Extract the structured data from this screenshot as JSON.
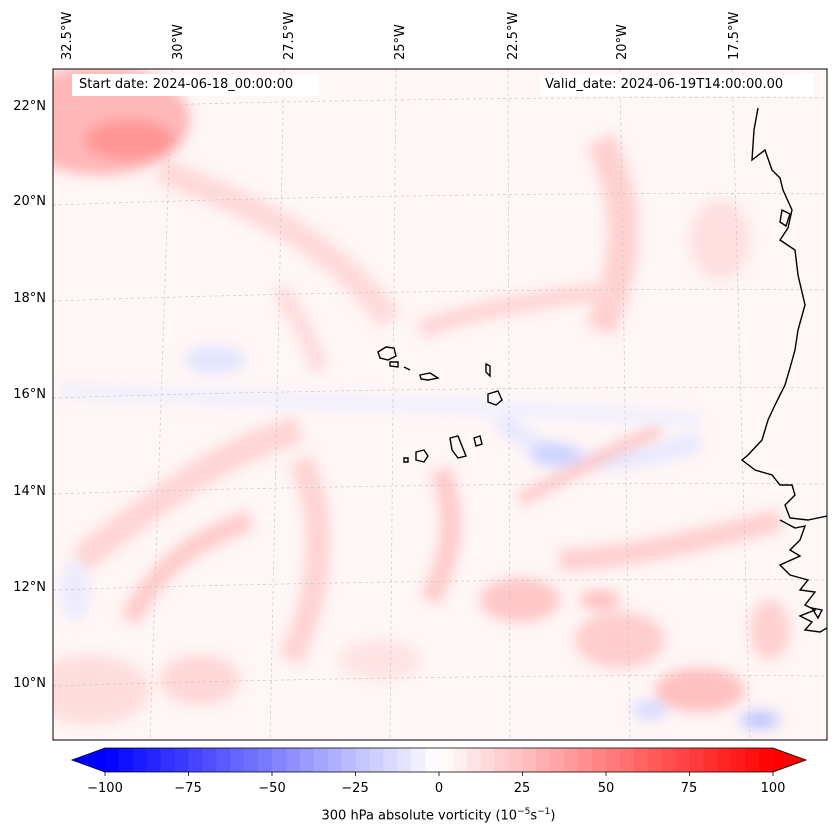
{
  "map": {
    "start_date": "Start date: 2024-06-18_00:00:00",
    "valid_date": "Valid_date: 2024-06-19T14:00:00.00",
    "lon_labels": [
      "32.5°W",
      "30°W",
      "27.5°W",
      "25°W",
      "22.5°W",
      "20°W",
      "17.5°W"
    ],
    "lat_labels": [
      "22°N",
      "20°N",
      "18°N",
      "16°N",
      "14°N",
      "12°N",
      "10°N"
    ],
    "field": "300 hPa absolute vorticity",
    "colors": {
      "negative": "#0000ff",
      "neutral": "#ffffff",
      "positive": "#ff0000",
      "coastline": "#000000",
      "gridline": "#cccccc"
    }
  },
  "colorbar": {
    "ticks": [
      "−100",
      "−75",
      "−50",
      "−25",
      "0",
      "25",
      "50",
      "75",
      "100"
    ],
    "label": "300 hPa absolute vorticity (10",
    "label_exp1": "−5",
    "label_mid": "s",
    "label_exp2": "−1",
    "label_end": ")",
    "range": [
      -100,
      100
    ]
  }
}
